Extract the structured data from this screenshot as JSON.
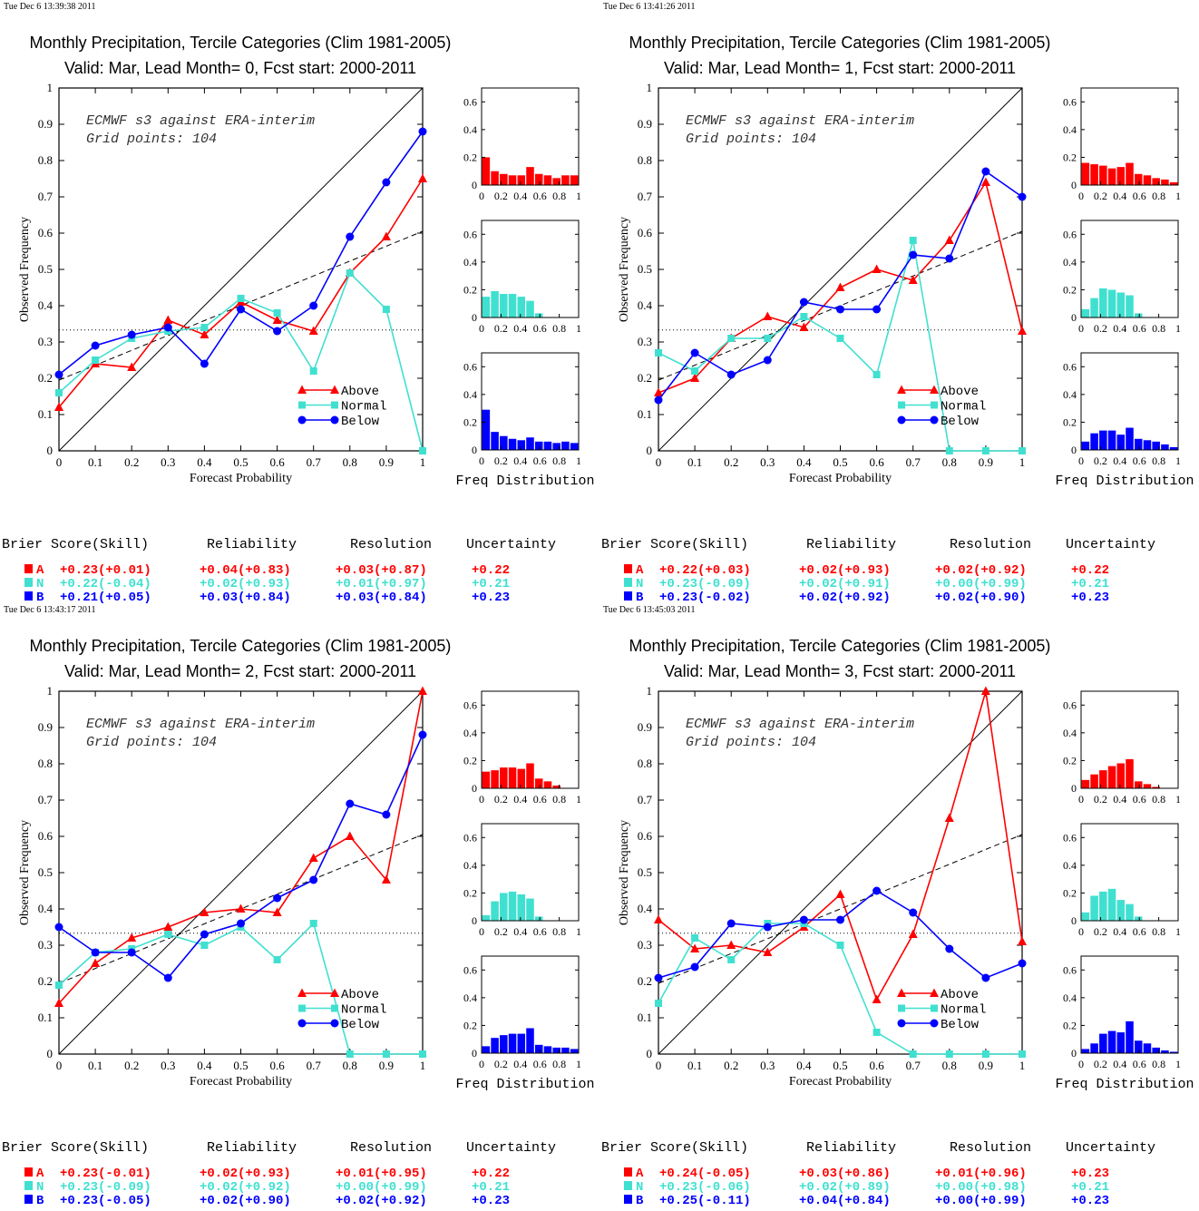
{
  "colors": {
    "above": "#ff0000",
    "normal": "#40e0d0",
    "below": "#0000ff",
    "axis": "#000000"
  },
  "labels": {
    "xlabel": "Forecast Probability",
    "ylabel": "Observed Frequency",
    "freq_label": "Freq Distribution",
    "score_headers": [
      "Brier Score(Skill)",
      "Reliability",
      "Resolution",
      "Uncertainty"
    ],
    "legend": [
      "Above",
      "Normal",
      "Below"
    ],
    "cat_letters": [
      "A",
      "N",
      "B"
    ]
  },
  "chart_data": [
    {
      "type": "line",
      "timestamp": "Tue Dec  6 13:39:38 2011",
      "title": "Monthly Precipitation, Tercile Categories (Clim 1981-2005)",
      "subtitle": "Valid: Mar, Lead Month= 0, Fcst start: 2000-2011",
      "annotation": [
        "ECMWF s3 against ERA-interim",
        "Grid points:  104"
      ],
      "xlabel": "Forecast Probability",
      "ylabel": "Observed Frequency",
      "xlim": [
        0,
        1
      ],
      "ylim": [
        0,
        1
      ],
      "x": [
        0,
        0.1,
        0.2,
        0.3,
        0.4,
        0.5,
        0.6,
        0.7,
        0.8,
        0.9,
        1.0
      ],
      "climatology": 0.333,
      "skill_line": [
        0.195,
        0.605
      ],
      "series": [
        {
          "name": "Above",
          "values": [
            0.12,
            0.24,
            0.23,
            0.36,
            0.32,
            0.41,
            0.36,
            0.33,
            0.49,
            0.59,
            0.75
          ]
        },
        {
          "name": "Normal",
          "values": [
            0.16,
            0.25,
            0.31,
            0.33,
            0.34,
            0.42,
            0.38,
            0.22,
            0.49,
            0.39,
            0.0
          ]
        },
        {
          "name": "Below",
          "values": [
            0.21,
            0.29,
            0.32,
            0.34,
            0.24,
            0.39,
            0.33,
            0.4,
            0.59,
            0.74,
            0.88
          ]
        }
      ],
      "freq_distribution": {
        "xlim": [
          0,
          1
        ],
        "ylim": [
          0,
          0.7
        ],
        "yticks": [
          0,
          0.2,
          0.4,
          0.6
        ],
        "above": [
          0.2,
          0.1,
          0.08,
          0.07,
          0.07,
          0.13,
          0.08,
          0.07,
          0.05,
          0.07,
          0.07
        ],
        "normal": [
          0.15,
          0.19,
          0.17,
          0.17,
          0.15,
          0.12,
          0.03,
          0.0,
          0.0,
          0.0,
          0.0
        ],
        "below": [
          0.29,
          0.13,
          0.1,
          0.08,
          0.07,
          0.09,
          0.06,
          0.06,
          0.05,
          0.06,
          0.05
        ]
      },
      "scores": [
        {
          "cat": "A",
          "brier": "+0.23(+0.01)",
          "reliability": "+0.04(+0.83)",
          "resolution": "+0.03(+0.87)",
          "uncertainty": "+0.22"
        },
        {
          "cat": "N",
          "brier": "+0.22(-0.04)",
          "reliability": "+0.02(+0.93)",
          "resolution": "+0.01(+0.97)",
          "uncertainty": "+0.21"
        },
        {
          "cat": "B",
          "brier": "+0.21(+0.05)",
          "reliability": "+0.03(+0.84)",
          "resolution": "+0.03(+0.84)",
          "uncertainty": "+0.23"
        }
      ]
    },
    {
      "type": "line",
      "timestamp": "Tue Dec  6 13:41:26 2011",
      "title": "Monthly Precipitation, Tercile Categories (Clim 1981-2005)",
      "subtitle": "Valid: Mar, Lead Month= 1, Fcst start: 2000-2011",
      "annotation": [
        "ECMWF s3 against ERA-interim",
        "Grid points:  104"
      ],
      "xlabel": "Forecast Probability",
      "ylabel": "Observed Frequency",
      "xlim": [
        0,
        1
      ],
      "ylim": [
        0,
        1
      ],
      "x": [
        0,
        0.1,
        0.2,
        0.3,
        0.4,
        0.5,
        0.6,
        0.7,
        0.8,
        0.9,
        1.0
      ],
      "climatology": 0.333,
      "skill_line": [
        0.195,
        0.605
      ],
      "series": [
        {
          "name": "Above",
          "values": [
            0.16,
            0.2,
            0.31,
            0.37,
            0.34,
            0.45,
            0.5,
            0.47,
            0.58,
            0.74,
            0.33
          ]
        },
        {
          "name": "Normal",
          "values": [
            0.27,
            0.22,
            0.31,
            0.31,
            0.37,
            0.31,
            0.21,
            0.58,
            0.0,
            0.0,
            0.0
          ]
        },
        {
          "name": "Below",
          "values": [
            0.14,
            0.27,
            0.21,
            0.25,
            0.41,
            0.39,
            0.39,
            0.54,
            0.53,
            0.77,
            0.7
          ]
        }
      ],
      "freq_distribution": {
        "xlim": [
          0,
          1
        ],
        "ylim": [
          0,
          0.7
        ],
        "yticks": [
          0,
          0.2,
          0.4,
          0.6
        ],
        "above": [
          0.16,
          0.15,
          0.14,
          0.12,
          0.13,
          0.16,
          0.08,
          0.07,
          0.05,
          0.04,
          0.02
        ],
        "normal": [
          0.06,
          0.14,
          0.21,
          0.2,
          0.18,
          0.16,
          0.03,
          0.0,
          0.0,
          0.0,
          0.0
        ],
        "below": [
          0.06,
          0.12,
          0.14,
          0.14,
          0.11,
          0.16,
          0.08,
          0.07,
          0.06,
          0.04,
          0.02
        ]
      },
      "scores": [
        {
          "cat": "A",
          "brier": "+0.22(+0.03)",
          "reliability": "+0.02(+0.93)",
          "resolution": "+0.02(+0.92)",
          "uncertainty": "+0.22"
        },
        {
          "cat": "N",
          "brier": "+0.23(-0.09)",
          "reliability": "+0.02(+0.91)",
          "resolution": "+0.00(+0.99)",
          "uncertainty": "+0.21"
        },
        {
          "cat": "B",
          "brier": "+0.23(-0.02)",
          "reliability": "+0.02(+0.92)",
          "resolution": "+0.02(+0.90)",
          "uncertainty": "+0.23"
        }
      ]
    },
    {
      "type": "line",
      "timestamp": "Tue Dec  6 13:43:17 2011",
      "title": "Monthly Precipitation, Tercile Categories (Clim 1981-2005)",
      "subtitle": "Valid: Mar, Lead Month= 2, Fcst start: 2000-2011",
      "annotation": [
        "ECMWF s3 against ERA-interim",
        "Grid points:  104"
      ],
      "xlabel": "Forecast Probability",
      "ylabel": "Observed Frequency",
      "xlim": [
        0,
        1
      ],
      "ylim": [
        0,
        1
      ],
      "x": [
        0,
        0.1,
        0.2,
        0.3,
        0.4,
        0.5,
        0.6,
        0.7,
        0.8,
        0.9,
        1.0
      ],
      "climatology": 0.333,
      "skill_line": [
        0.195,
        0.605
      ],
      "series": [
        {
          "name": "Above",
          "values": [
            0.14,
            0.25,
            0.32,
            0.35,
            0.39,
            0.4,
            0.39,
            0.54,
            0.6,
            0.48,
            1.0
          ]
        },
        {
          "name": "Normal",
          "values": [
            0.19,
            0.28,
            0.29,
            0.33,
            0.3,
            0.35,
            0.26,
            0.36,
            0.0,
            0.0,
            0.0
          ]
        },
        {
          "name": "Below",
          "values": [
            0.35,
            0.28,
            0.28,
            0.21,
            0.33,
            0.36,
            0.43,
            0.48,
            0.69,
            0.66,
            0.88
          ]
        }
      ],
      "freq_distribution": {
        "xlim": [
          0,
          1
        ],
        "ylim": [
          0,
          0.7
        ],
        "yticks": [
          0,
          0.2,
          0.4,
          0.6
        ],
        "above": [
          0.12,
          0.13,
          0.15,
          0.15,
          0.14,
          0.18,
          0.07,
          0.05,
          0.02,
          0.0,
          0.0
        ],
        "normal": [
          0.04,
          0.14,
          0.2,
          0.21,
          0.19,
          0.16,
          0.03,
          0.0,
          0.0,
          0.0,
          0.0
        ],
        "below": [
          0.05,
          0.11,
          0.13,
          0.14,
          0.14,
          0.18,
          0.06,
          0.05,
          0.04,
          0.04,
          0.03
        ]
      },
      "scores": [
        {
          "cat": "A",
          "brier": "+0.23(-0.01)",
          "reliability": "+0.02(+0.93)",
          "resolution": "+0.01(+0.95)",
          "uncertainty": "+0.22"
        },
        {
          "cat": "N",
          "brier": "+0.23(-0.09)",
          "reliability": "+0.02(+0.92)",
          "resolution": "+0.00(+0.99)",
          "uncertainty": "+0.21"
        },
        {
          "cat": "B",
          "brier": "+0.23(-0.05)",
          "reliability": "+0.02(+0.90)",
          "resolution": "+0.02(+0.92)",
          "uncertainty": "+0.23"
        }
      ]
    },
    {
      "type": "line",
      "timestamp": "Tue Dec  6 13:45:03 2011",
      "title": "Monthly Precipitation, Tercile Categories (Clim 1981-2005)",
      "subtitle": "Valid: Mar, Lead Month= 3, Fcst start: 2000-2011",
      "annotation": [
        "ECMWF s3 against ERA-interim",
        "Grid points:  104"
      ],
      "xlabel": "Forecast Probability",
      "ylabel": "Observed Frequency",
      "xlim": [
        0,
        1
      ],
      "ylim": [
        0,
        1
      ],
      "x": [
        0,
        0.1,
        0.2,
        0.3,
        0.4,
        0.5,
        0.6,
        0.7,
        0.8,
        0.9,
        1.0
      ],
      "climatology": 0.333,
      "skill_line": [
        0.195,
        0.605
      ],
      "series": [
        {
          "name": "Above",
          "values": [
            0.37,
            0.29,
            0.3,
            0.28,
            0.35,
            0.44,
            0.15,
            0.33,
            0.65,
            1.0,
            0.31
          ]
        },
        {
          "name": "Normal",
          "values": [
            0.14,
            0.32,
            0.26,
            0.36,
            0.36,
            0.3,
            0.06,
            0.0,
            0.0,
            0.0,
            0.0
          ]
        },
        {
          "name": "Below",
          "values": [
            0.21,
            0.24,
            0.36,
            0.35,
            0.37,
            0.37,
            0.45,
            0.39,
            0.29,
            0.21,
            0.25
          ]
        }
      ],
      "freq_distribution": {
        "xlim": [
          0,
          1
        ],
        "ylim": [
          0,
          0.7
        ],
        "yticks": [
          0,
          0.2,
          0.4,
          0.6
        ],
        "above": [
          0.06,
          0.1,
          0.13,
          0.16,
          0.18,
          0.21,
          0.05,
          0.03,
          0.01,
          0.0,
          0.0
        ],
        "normal": [
          0.06,
          0.18,
          0.21,
          0.23,
          0.15,
          0.12,
          0.03,
          0.0,
          0.0,
          0.0,
          0.0
        ],
        "below": [
          0.03,
          0.07,
          0.14,
          0.16,
          0.15,
          0.23,
          0.09,
          0.07,
          0.04,
          0.02,
          0.01
        ]
      },
      "scores": [
        {
          "cat": "A",
          "brier": "+0.24(-0.05)",
          "reliability": "+0.03(+0.86)",
          "resolution": "+0.01(+0.96)",
          "uncertainty": "+0.23"
        },
        {
          "cat": "N",
          "brier": "+0.23(-0.06)",
          "reliability": "+0.02(+0.89)",
          "resolution": "+0.00(+0.98)",
          "uncertainty": "+0.21"
        },
        {
          "cat": "B",
          "brier": "+0.25(-0.11)",
          "reliability": "+0.04(+0.84)",
          "resolution": "+0.00(+0.99)",
          "uncertainty": "+0.23"
        }
      ]
    }
  ]
}
